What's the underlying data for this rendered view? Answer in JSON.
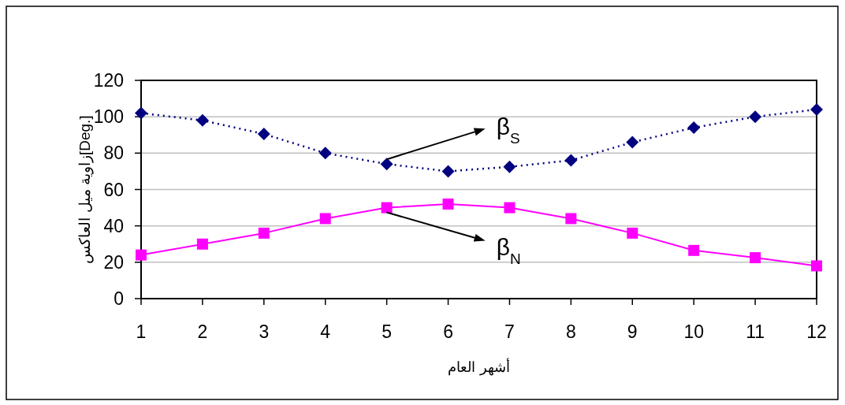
{
  "chart_data": {
    "type": "line",
    "xlabel": "أشهر العام",
    "ylabel": "زاوية ميل العاكس[Deg.]",
    "x": [
      1,
      2,
      3,
      4,
      5,
      6,
      7,
      8,
      9,
      10,
      11,
      12
    ],
    "xlim": [
      1,
      12
    ],
    "xticks": [
      1,
      2,
      3,
      4,
      5,
      6,
      7,
      8,
      9,
      10,
      11,
      12
    ],
    "ylim": [
      0,
      120
    ],
    "yticks": [
      0,
      20,
      40,
      60,
      80,
      100,
      120
    ],
    "grid": "y",
    "series": [
      {
        "color": "#000080",
        "marker": "diamond",
        "line_style": "dotted",
        "values": [
          102,
          98,
          90.5,
          80,
          74,
          70,
          72.5,
          76,
          86,
          94,
          100,
          104
        ]
      },
      {
        "color": "#ff00ff",
        "marker": "square",
        "line_style": "solid",
        "values": [
          24,
          30,
          36,
          44,
          50,
          52,
          50,
          44,
          36,
          26.5,
          22.5,
          18
        ]
      }
    ],
    "annotations": [
      {
        "text": "β$_{S}$",
        "x": 5,
        "y": 74
      },
      {
        "text": "β$_{N}$",
        "x": 5,
        "y": 50
      }
    ]
  }
}
